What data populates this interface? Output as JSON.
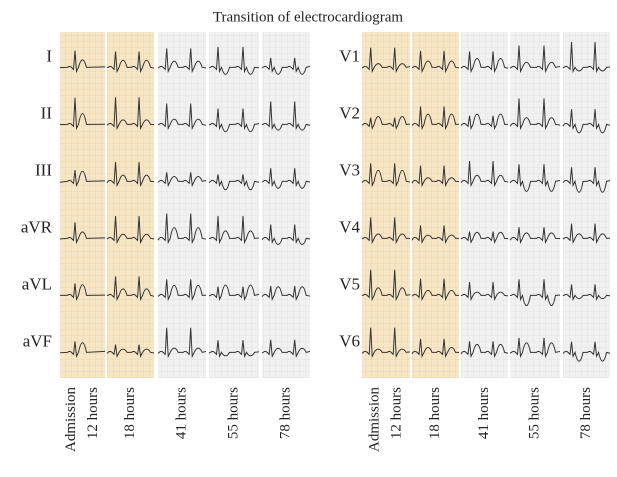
{
  "title": "Transition of electrocardiogram",
  "left_panel": {
    "leads": [
      "I",
      "II",
      "III",
      "aVR",
      "aVL",
      "aVF"
    ],
    "columns": [
      [
        "Admission",
        "12 hours"
      ],
      [
        "18 hours"
      ],
      [
        "41 hours"
      ],
      [
        "55 hours"
      ],
      [
        "78 hours"
      ]
    ]
  },
  "right_panel": {
    "leads": [
      "V1",
      "V2",
      "V3",
      "V4",
      "V5",
      "V6"
    ],
    "columns": [
      [
        "Admission",
        "12 hours"
      ],
      [
        "18 hours"
      ],
      [
        "41 hours"
      ],
      [
        "55 hours"
      ],
      [
        "78 hours"
      ]
    ]
  }
}
